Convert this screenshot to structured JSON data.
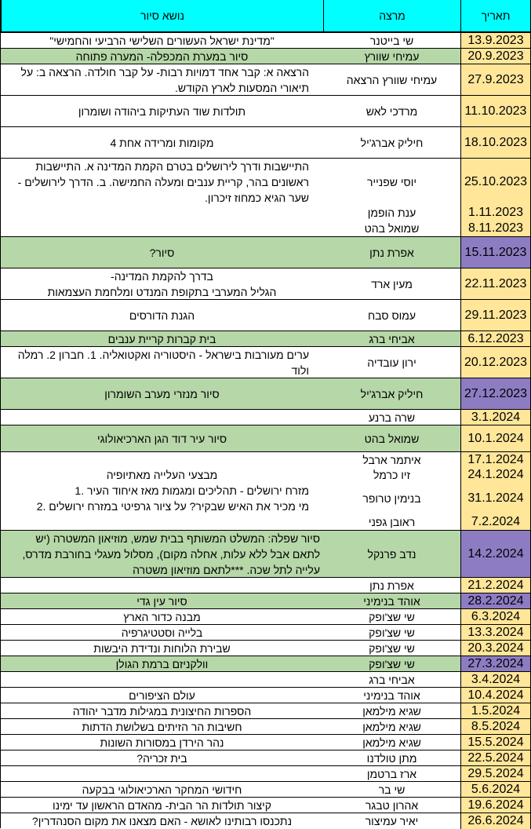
{
  "colors": {
    "header_bg": "#00ffff",
    "date_default": "#ffe699",
    "date_highlight": "#8e7cc3",
    "row_green": "#b6d7a8",
    "white": "#ffffff"
  },
  "header": {
    "date": "תאריך",
    "lecturer": "מרצה",
    "topic": "נושא סיור"
  },
  "rows": [
    {
      "date": "13.9.2023",
      "lecturer": "שי בייטנר",
      "topic": [
        "\"מדינת ישראל העשורים השלישי הרביעי והחמישי\""
      ]
    },
    {
      "date": "20.9.2023",
      "lecturer": "עמיחי שוורץ",
      "topic": [
        "סיור במערת המכפלה- המערה פתוחה"
      ]
    },
    {
      "date": "27.9.2023",
      "lecturer": "עמיחי שוורץ הרצאה",
      "topic": [
        "הרצאה א: קבר אחד דמויות רבות- על קבר חולדה. הרצאה ב: על",
        "תיאורי המסעות לארץ הקודש."
      ]
    },
    {
      "date": "11.10.2023",
      "lecturer": "מרדכי לאש",
      "topic": [
        "תולדות שוד העתיקות ביהודה ושומרון"
      ]
    },
    {
      "date": "18.10.2023",
      "lecturer": "חיליק אברג'יל",
      "topic": [
        "מקומות ומרידה אחת 4"
      ]
    },
    {
      "date": "25.10.2023",
      "lecturer": "יוסי שפנייר",
      "topic": [
        "התיישבות ודרך לירושלים בטרם הקמת המדינה א. התיישבות",
        "ראשונים בהר, קריית ענבים ומעלה החמישה. ב. הדרך לירושלים -",
        "שער הגיא כמחוז זיכרון."
      ]
    },
    {
      "date": "1.11.2023",
      "lecturer": "ענת הופמן",
      "topic": []
    },
    {
      "date": "8.11.2023",
      "lecturer": "שמואל בהט",
      "topic": []
    },
    {
      "date": "15.11.2023",
      "lecturer": "אפרת נתן",
      "topic": [
        "סיור?"
      ]
    },
    {
      "date": "22.11.2023",
      "lecturer": "מעין ארד",
      "topic": [
        "בדרך להקמת המדינה-",
        "הגליל המערבי בתקופת המנדט ומלחמת העצמאות"
      ]
    },
    {
      "date": "29.11.2023",
      "lecturer": "עמוס סבח",
      "topic": [
        "הגנת הדורסים"
      ]
    },
    {
      "date": "6.12.2023",
      "lecturer": "אביחי ברג",
      "topic": [
        "בית קברות קריית ענבים"
      ]
    },
    {
      "date": "20.12.2023",
      "lecturer": "ירון עובדיה",
      "topic": [
        "ערים מעורבות בישראל - היסטוריה ואקטואליה. 1. חברון 2. רמלה",
        "ולוד"
      ]
    },
    {
      "date": "27.12.2023",
      "lecturer": "חיליק אברג'יל",
      "topic": [
        "סיור מנזרי מערב השומרון"
      ]
    },
    {
      "date": "3.1.2024",
      "lecturer": "שרה ברנע",
      "topic": []
    },
    {
      "date": "10.1.2024",
      "lecturer": "שמואל בהט",
      "topic": [
        "סיור עיר דוד הגן הארכיאולוגי"
      ]
    },
    {
      "date": "17.1.2024",
      "lecturer": "איתמר ארבל",
      "topic": []
    },
    {
      "date": "24.1.2024",
      "lecturer": "זיו כרמל",
      "topic": [
        "מבצעי העלייה מאתיופיה"
      ]
    },
    {
      "date": "31.1.2024",
      "lecturer": "בנימין טרופר",
      "topic": [
        "מזרח ירושלים - תהליכים ומגמות מאז איחוד העיר .1",
        "מי מכיר את האיש שבקיר? על ציור גרפיטי במזרח ירושלים .2"
      ]
    },
    {
      "date": "7.2.2024",
      "lecturer": "ראובן גפני",
      "topic": []
    },
    {
      "date": "14.2.2024",
      "lecturer": "נדב פרנקל",
      "topic": [
        "סיור שפלה: המשלט המשותף בבית שמש, מוזיאון המשטרה (יש",
        "לתאם אבל ללא עלות, אחלה מקום), מסלול מעגלי בחורבת מדרס,",
        "עלייה לתל שכה. ***לתאם מוזיאון משטרה"
      ]
    },
    {
      "date": "21.2.2024",
      "lecturer": "אפרת נתן",
      "topic": []
    },
    {
      "date": "28.2.2024",
      "lecturer": "אוהד בנימיני",
      "topic": [
        "סיור עין גדי"
      ]
    },
    {
      "date": "6.3.2024",
      "lecturer": "שי שצ'ופק",
      "topic": [
        "מבנה כדור הארץ"
      ]
    },
    {
      "date": "13.3.2024",
      "lecturer": "שי שצ'ופק",
      "topic": [
        "בלייה וסטטיגרפיה"
      ]
    },
    {
      "date": "20.3.2024",
      "lecturer": "שי שצ'ופק",
      "topic": [
        "שבירת הלוחות ונדידת היבשות"
      ]
    },
    {
      "date": "27.3.2024",
      "lecturer": "שי שצ'ופק",
      "topic": [
        "וולקניזם ברמת הגולן"
      ]
    },
    {
      "date": "3.4.2024",
      "lecturer": "אביחי ברג",
      "topic": []
    },
    {
      "date": "10.4.2024",
      "lecturer": "אוהד בנימיני",
      "topic": [
        "עולם הציפורים"
      ]
    },
    {
      "date": "1.5.2024",
      "lecturer": "שגיא מילמאן",
      "topic": [
        "הספרות החיצונית במגילות מדבר יהודה"
      ]
    },
    {
      "date": "8.5.2024",
      "lecturer": "שגיא מילמאן",
      "topic": [
        "חשיבות הר הזיתים בשלושת הדתות"
      ]
    },
    {
      "date": "15.5.2024",
      "lecturer": "שגיא מילמאן",
      "topic": [
        "נהר הירדן במסורות השונות"
      ]
    },
    {
      "date": "22.5.2024",
      "lecturer": "מתן טולדנו",
      "topic": [
        "בית זכריה?"
      ]
    },
    {
      "date": "29.5.2024",
      "lecturer": "ארז ברטמן",
      "topic": []
    },
    {
      "date": "5.6.2024",
      "lecturer": "שי בר",
      "topic": [
        "חידושי המחקר הארכיאולוגי בבקעה"
      ]
    },
    {
      "date": "19.6.2024",
      "lecturer": "אהרון טבגר",
      "topic": [
        "קיצור תולדות הר הבית- מהאדם הראשון עד ימינו"
      ]
    },
    {
      "date": "26.6.2024",
      "lecturer": "יאיר עמיצור",
      "topic": [
        "נתכנסו רבותינו לאושא - האם מצאנו את מקום הסנהדרין?"
      ]
    }
  ]
}
